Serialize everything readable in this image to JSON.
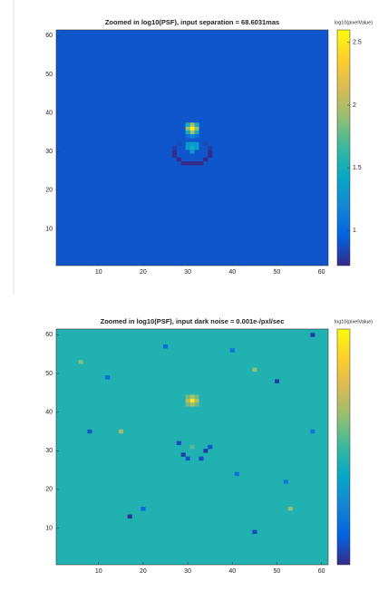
{
  "chart_data": [
    {
      "type": "heatmap",
      "title": "Zoomed in log10(PSF), input separation = 68.6031mas",
      "colorbar_label": "log10(pixelValue)",
      "xlim": [
        0.5,
        61.5
      ],
      "ylim": [
        0.5,
        61.5
      ],
      "xticks": [
        10,
        20,
        30,
        40,
        50,
        60
      ],
      "yticks": [
        10,
        20,
        30,
        40,
        50,
        60
      ],
      "clim": [
        0.72,
        2.6
      ],
      "cticks": [
        1,
        1.5,
        2,
        2.5
      ],
      "colormap": [
        "#352a87",
        "#0363e1",
        "#1485d4",
        "#06a7c6",
        "#38b99e",
        "#92bf73",
        "#d9ba56",
        "#fcce2e",
        "#f9fb0e"
      ],
      "background": 0.9,
      "pixels": {
        "x": [
          31,
          30,
          32,
          31,
          31,
          30,
          32,
          30,
          32,
          31,
          30,
          32,
          31,
          30,
          32,
          31,
          30,
          32,
          31,
          27,
          27,
          28,
          29,
          30,
          31,
          32,
          33,
          34,
          35,
          35,
          27,
          35,
          28,
          34
        ],
        "y": [
          36,
          36,
          36,
          37,
          35,
          37,
          37,
          35,
          35,
          31,
          31,
          31,
          32,
          32,
          32,
          34,
          34,
          34,
          30,
          30,
          29,
          28,
          27,
          27,
          27,
          27,
          27,
          28,
          29,
          30,
          31,
          31,
          32,
          32
        ],
        "values": [
          2.55,
          1.9,
          1.9,
          2.0,
          2.0,
          1.5,
          1.5,
          1.5,
          1.5,
          1.5,
          1.35,
          1.35,
          1.35,
          1.3,
          1.3,
          1.2,
          1.05,
          1.05,
          1.3,
          0.75,
          0.72,
          0.72,
          0.72,
          0.72,
          0.72,
          0.72,
          0.72,
          0.72,
          0.72,
          0.75,
          0.8,
          0.8,
          0.85,
          0.85
        ]
      }
    },
    {
      "type": "heatmap",
      "title": "Zoomed in log10(PSF), input dark noise = 0.001e-/pxl/sec",
      "colorbar_label": "log10(pixelValue)",
      "xlim": [
        0.5,
        61.5
      ],
      "ylim": [
        0.5,
        61.5
      ],
      "xticks": [
        10,
        20,
        30,
        40,
        50,
        60
      ],
      "yticks": [
        10,
        20,
        30,
        40,
        50,
        60
      ],
      "clim": [
        0.72,
        2.6
      ],
      "colormap": [
        "#352a87",
        "#0363e1",
        "#1485d4",
        "#06a7c6",
        "#38b99e",
        "#92bf73",
        "#d9ba56",
        "#fcce2e",
        "#f9fb0e"
      ],
      "background": 1.55,
      "pixels": {
        "x": [
          31,
          30,
          32,
          31,
          31,
          30,
          32,
          30,
          32,
          31,
          28,
          29,
          34,
          33,
          35,
          30,
          17,
          50,
          45,
          58,
          8,
          20,
          25,
          40,
          52,
          12,
          41,
          58,
          15,
          53,
          6,
          45
        ],
        "y": [
          43,
          43,
          43,
          44,
          42,
          44,
          44,
          42,
          42,
          31,
          32,
          29,
          30,
          28,
          31,
          28,
          13,
          48,
          9,
          60,
          35,
          15,
          57,
          56,
          22,
          49,
          24,
          35,
          35,
          15,
          53,
          51
        ],
        "values": [
          2.5,
          2.0,
          2.0,
          2.0,
          2.0,
          1.8,
          1.8,
          1.8,
          1.8,
          1.75,
          0.85,
          0.8,
          0.8,
          0.85,
          0.9,
          0.9,
          0.75,
          0.8,
          0.85,
          0.8,
          0.9,
          1.0,
          1.0,
          1.05,
          1.1,
          1.0,
          1.05,
          1.1,
          1.95,
          1.9,
          1.85,
          1.9
        ]
      }
    }
  ]
}
